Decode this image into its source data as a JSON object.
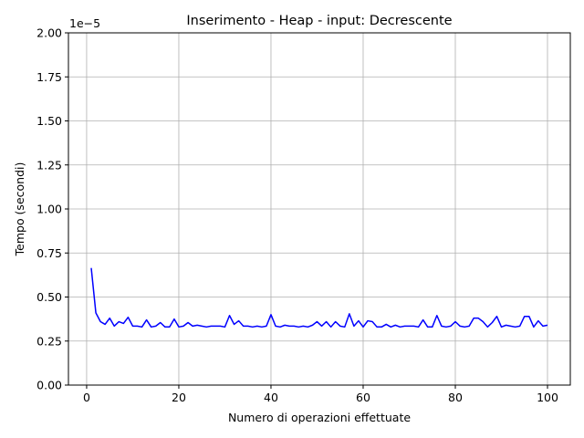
{
  "chart_data": {
    "type": "line",
    "title": "Inserimento - Heap - input: Decrescente",
    "xlabel": "Numero di operazioni effettuate",
    "ylabel": "Tempo (secondi)",
    "y_offset_label": "1e−5",
    "xlim": [
      -3.95,
      104.95
    ],
    "ylim": [
      0,
      2e-05
    ],
    "grid": true,
    "x_ticks": [
      0,
      20,
      40,
      60,
      80,
      100
    ],
    "x_tick_labels": [
      "0",
      "20",
      "40",
      "60",
      "80",
      "100"
    ],
    "y_ticks": [
      0,
      2.5e-06,
      5e-06,
      7.5e-06,
      1e-05,
      1.25e-05,
      1.5e-05,
      1.75e-05,
      2e-05
    ],
    "y_tick_labels": [
      "0.00",
      "0.25",
      "0.50",
      "0.75",
      "1.00",
      "1.25",
      "1.50",
      "1.75",
      "2.00"
    ],
    "series": [
      {
        "color": "#0000ff",
        "x": [
          1,
          2,
          3,
          4,
          5,
          6,
          7,
          8,
          9,
          10,
          11,
          12,
          13,
          14,
          15,
          16,
          17,
          18,
          19,
          20,
          21,
          22,
          23,
          24,
          25,
          26,
          27,
          28,
          29,
          30,
          31,
          32,
          33,
          34,
          35,
          36,
          37,
          38,
          39,
          40,
          41,
          42,
          43,
          44,
          45,
          46,
          47,
          48,
          49,
          50,
          51,
          52,
          53,
          54,
          55,
          56,
          57,
          58,
          59,
          60,
          61,
          62,
          63,
          64,
          65,
          66,
          67,
          68,
          69,
          70,
          71,
          72,
          73,
          74,
          75,
          76,
          77,
          78,
          79,
          80,
          81,
          82,
          83,
          84,
          85,
          86,
          87,
          88,
          89,
          90,
          91,
          92,
          93,
          94,
          95,
          96,
          97,
          98,
          99,
          100
        ],
        "values": [
          6.65e-06,
          4.1e-06,
          3.6e-06,
          3.45e-06,
          3.8e-06,
          3.35e-06,
          3.6e-06,
          3.5e-06,
          3.85e-06,
          3.35e-06,
          3.35e-06,
          3.3e-06,
          3.7e-06,
          3.3e-06,
          3.35e-06,
          3.55e-06,
          3.3e-06,
          3.3e-06,
          3.75e-06,
          3.3e-06,
          3.35e-06,
          3.55e-06,
          3.35e-06,
          3.4e-06,
          3.35e-06,
          3.3e-06,
          3.35e-06,
          3.35e-06,
          3.35e-06,
          3.3e-06,
          3.95e-06,
          3.45e-06,
          3.65e-06,
          3.35e-06,
          3.35e-06,
          3.3e-06,
          3.35e-06,
          3.3e-06,
          3.35e-06,
          4e-06,
          3.35e-06,
          3.3e-06,
          3.4e-06,
          3.35e-06,
          3.35e-06,
          3.3e-06,
          3.35e-06,
          3.3e-06,
          3.4e-06,
          3.6e-06,
          3.35e-06,
          3.6e-06,
          3.3e-06,
          3.6e-06,
          3.35e-06,
          3.3e-06,
          4.05e-06,
          3.35e-06,
          3.65e-06,
          3.3e-06,
          3.65e-06,
          3.6e-06,
          3.3e-06,
          3.3e-06,
          3.45e-06,
          3.3e-06,
          3.4e-06,
          3.3e-06,
          3.35e-06,
          3.35e-06,
          3.35e-06,
          3.3e-06,
          3.7e-06,
          3.3e-06,
          3.3e-06,
          3.95e-06,
          3.35e-06,
          3.3e-06,
          3.35e-06,
          3.6e-06,
          3.35e-06,
          3.3e-06,
          3.35e-06,
          3.8e-06,
          3.8e-06,
          3.6e-06,
          3.3e-06,
          3.55e-06,
          3.9e-06,
          3.3e-06,
          3.4e-06,
          3.35e-06,
          3.3e-06,
          3.35e-06,
          3.9e-06,
          3.9e-06,
          3.3e-06,
          3.65e-06,
          3.35e-06,
          3.4e-06
        ]
      }
    ]
  }
}
